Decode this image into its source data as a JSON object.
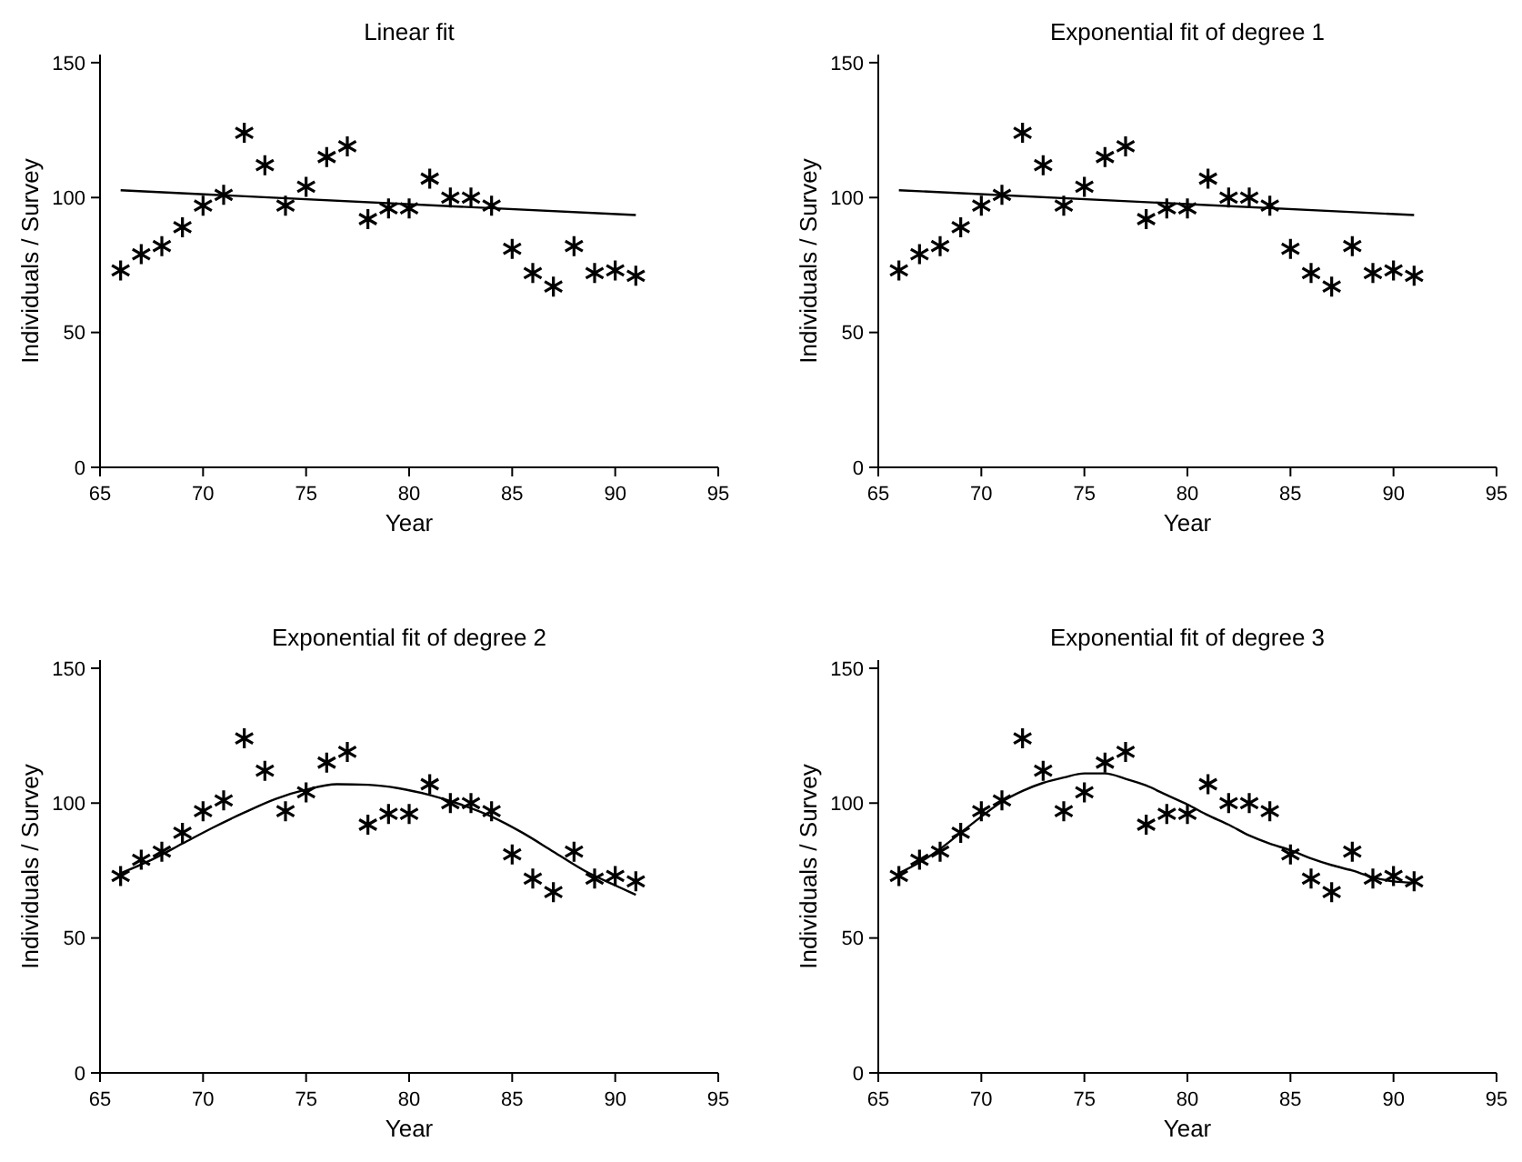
{
  "chart_data": [
    {
      "type": "scatter",
      "title": "Linear fit",
      "xlabel": "Year",
      "ylabel": "Individuals / Survey",
      "xlim": [
        65,
        95
      ],
      "xticks": [
        65,
        70,
        75,
        80,
        85,
        90,
        95
      ],
      "ylim": [
        0,
        153
      ],
      "yticks": [
        0,
        50,
        100,
        150
      ],
      "grid": false,
      "marker": "cross",
      "x": [
        66,
        67,
        68,
        69,
        70,
        71,
        72,
        73,
        74,
        75,
        76,
        77,
        78,
        79,
        80,
        81,
        82,
        83,
        84,
        85,
        86,
        87,
        88,
        89,
        90,
        91
      ],
      "series": [
        {
          "color": "#000000",
          "values": [
            73,
            79,
            82,
            89,
            97,
            101,
            124,
            112,
            97,
            104,
            115,
            119,
            92,
            96,
            96,
            107,
            100,
            100,
            97,
            81,
            72,
            67,
            82,
            72,
            73,
            71
          ]
        },
        {
          "type": "line",
          "color": "#000000",
          "line_style": "solid",
          "marker": "none",
          "x": [
            66,
            91
          ],
          "values": [
            102.7,
            93.5
          ]
        }
      ]
    },
    {
      "type": "scatter",
      "title": "Exponential fit of degree 1",
      "xlabel": "Year",
      "ylabel": "Individuals / Survey",
      "xlim": [
        65,
        95
      ],
      "xticks": [
        65,
        70,
        75,
        80,
        85,
        90,
        95
      ],
      "ylim": [
        0,
        153
      ],
      "yticks": [
        0,
        50,
        100,
        150
      ],
      "grid": false,
      "marker": "cross",
      "x": [
        66,
        67,
        68,
        69,
        70,
        71,
        72,
        73,
        74,
        75,
        76,
        77,
        78,
        79,
        80,
        81,
        82,
        83,
        84,
        85,
        86,
        87,
        88,
        89,
        90,
        91
      ],
      "series": [
        {
          "color": "#000000",
          "values": [
            73,
            79,
            82,
            89,
            97,
            101,
            124,
            112,
            97,
            104,
            115,
            119,
            92,
            96,
            96,
            107,
            100,
            100,
            97,
            81,
            72,
            67,
            82,
            72,
            73,
            71
          ]
        },
        {
          "type": "line",
          "color": "#000000",
          "line_style": "solid",
          "marker": "none",
          "x": [
            66,
            91
          ],
          "values": [
            102.7,
            93.5
          ]
        }
      ]
    },
    {
      "type": "scatter",
      "title": "Exponential fit of degree 2",
      "xlabel": "Year",
      "ylabel": "Individuals / Survey",
      "xlim": [
        65,
        95
      ],
      "xticks": [
        65,
        70,
        75,
        80,
        85,
        90,
        95
      ],
      "ylim": [
        0,
        153
      ],
      "yticks": [
        0,
        50,
        100,
        150
      ],
      "grid": false,
      "marker": "cross",
      "x": [
        66,
        67,
        68,
        69,
        70,
        71,
        72,
        73,
        74,
        75,
        76,
        77,
        78,
        79,
        80,
        81,
        82,
        83,
        84,
        85,
        86,
        87,
        88,
        89,
        90,
        91
      ],
      "series": [
        {
          "color": "#000000",
          "values": [
            73,
            79,
            82,
            89,
            97,
            101,
            124,
            112,
            97,
            104,
            115,
            119,
            92,
            96,
            96,
            107,
            100,
            100,
            97,
            81,
            72,
            67,
            82,
            72,
            73,
            71
          ]
        },
        {
          "type": "line",
          "color": "#000000",
          "line_style": "solid",
          "marker": "none",
          "x": [
            66,
            67.5,
            69,
            70.5,
            72,
            73.5,
            75,
            76.5,
            78,
            79.5,
            81,
            82.5,
            84,
            85.5,
            87,
            88.5,
            90,
            91
          ],
          "values": [
            74,
            79,
            85,
            91,
            96.5,
            101.5,
            105,
            107,
            106.8,
            105.5,
            103,
            99.5,
            95,
            89,
            82,
            75,
            69.5,
            66
          ]
        }
      ]
    },
    {
      "type": "scatter",
      "title": "Exponential fit of degree 3",
      "xlabel": "Year",
      "ylabel": "Individuals / Survey",
      "xlim": [
        65,
        95
      ],
      "xticks": [
        65,
        70,
        75,
        80,
        85,
        90,
        95
      ],
      "ylim": [
        0,
        153
      ],
      "yticks": [
        0,
        50,
        100,
        150
      ],
      "grid": false,
      "marker": "cross",
      "x": [
        66,
        67,
        68,
        69,
        70,
        71,
        72,
        73,
        74,
        75,
        76,
        77,
        78,
        79,
        80,
        81,
        82,
        83,
        84,
        85,
        86,
        87,
        88,
        89,
        90,
        91
      ],
      "series": [
        {
          "color": "#000000",
          "values": [
            73,
            79,
            82,
            89,
            97,
            101,
            124,
            112,
            97,
            104,
            115,
            119,
            92,
            96,
            96,
            107,
            100,
            100,
            97,
            81,
            72,
            67,
            82,
            72,
            73,
            71
          ]
        },
        {
          "type": "line",
          "color": "#000000",
          "line_style": "solid",
          "marker": "none",
          "x": [
            66,
            67,
            68,
            69,
            70,
            71,
            72,
            73,
            74,
            75,
            76,
            77,
            78,
            79,
            80,
            81,
            82,
            83,
            84,
            85,
            86,
            87,
            88,
            89,
            90,
            91
          ],
          "values": [
            74,
            78,
            83,
            89,
            95,
            100.5,
            104.5,
            107.5,
            109.5,
            111,
            111,
            109,
            106.5,
            103,
            99.5,
            95.5,
            92,
            88,
            85,
            82.5,
            79.5,
            77,
            75,
            72.5,
            71,
            70.5
          ]
        }
      ]
    }
  ]
}
